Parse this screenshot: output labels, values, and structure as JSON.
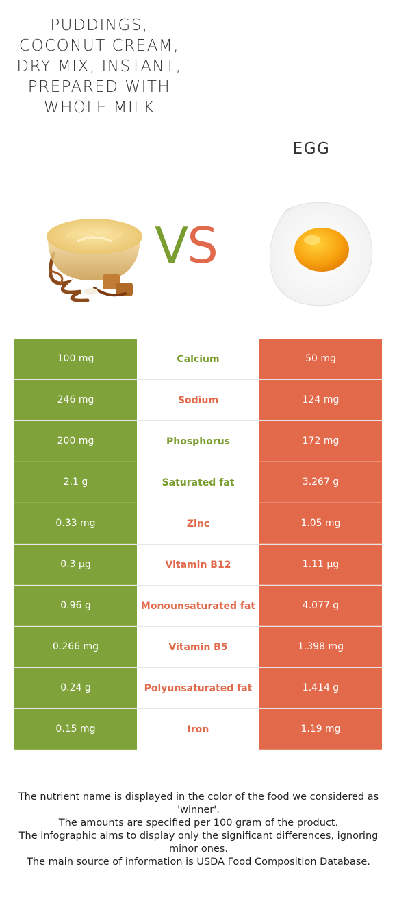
{
  "food_left": {
    "name": "PUDDINGS, COCONUT CREAM, DRY MIX, INSTANT, PREPARED WITH WHOLE MILK",
    "color": "#7fa33a",
    "image": "pudding-bowl-image"
  },
  "food_right": {
    "name": "EGG",
    "color": "#e2694a",
    "image": "fried-egg-image"
  },
  "vs": {
    "v": "V",
    "s": "S"
  },
  "rows": [
    {
      "left": "100 mg",
      "nutrient": "Calcium",
      "right": "50 mg",
      "winner": "left"
    },
    {
      "left": "246 mg",
      "nutrient": "Sodium",
      "right": "124 mg",
      "winner": "right"
    },
    {
      "left": "200 mg",
      "nutrient": "Phosphorus",
      "right": "172 mg",
      "winner": "left"
    },
    {
      "left": "2.1 g",
      "nutrient": "Saturated fat",
      "right": "3.267 g",
      "winner": "left"
    },
    {
      "left": "0.33 mg",
      "nutrient": "Zinc",
      "right": "1.05 mg",
      "winner": "right"
    },
    {
      "left": "0.3 µg",
      "nutrient": "Vitamin B12",
      "right": "1.11 µg",
      "winner": "right"
    },
    {
      "left": "0.96 g",
      "nutrient": "Monounsaturated fat",
      "right": "4.077 g",
      "winner": "right"
    },
    {
      "left": "0.266 mg",
      "nutrient": "Vitamin B5",
      "right": "1.398 mg",
      "winner": "right"
    },
    {
      "left": "0.24 g",
      "nutrient": "Polyunsaturated fat",
      "right": "1.414 g",
      "winner": "right"
    },
    {
      "left": "0.15 mg",
      "nutrient": "Iron",
      "right": "1.19 mg",
      "winner": "right"
    }
  ],
  "footnote": [
    "The nutrient name is displayed in the color of the food we considered as 'winner'.",
    "The amounts are specified per 100 gram of the product.",
    "The infographic aims to display only the significant differences, ignoring minor ones.",
    "The main source of information is USDA Food Composition Database."
  ]
}
